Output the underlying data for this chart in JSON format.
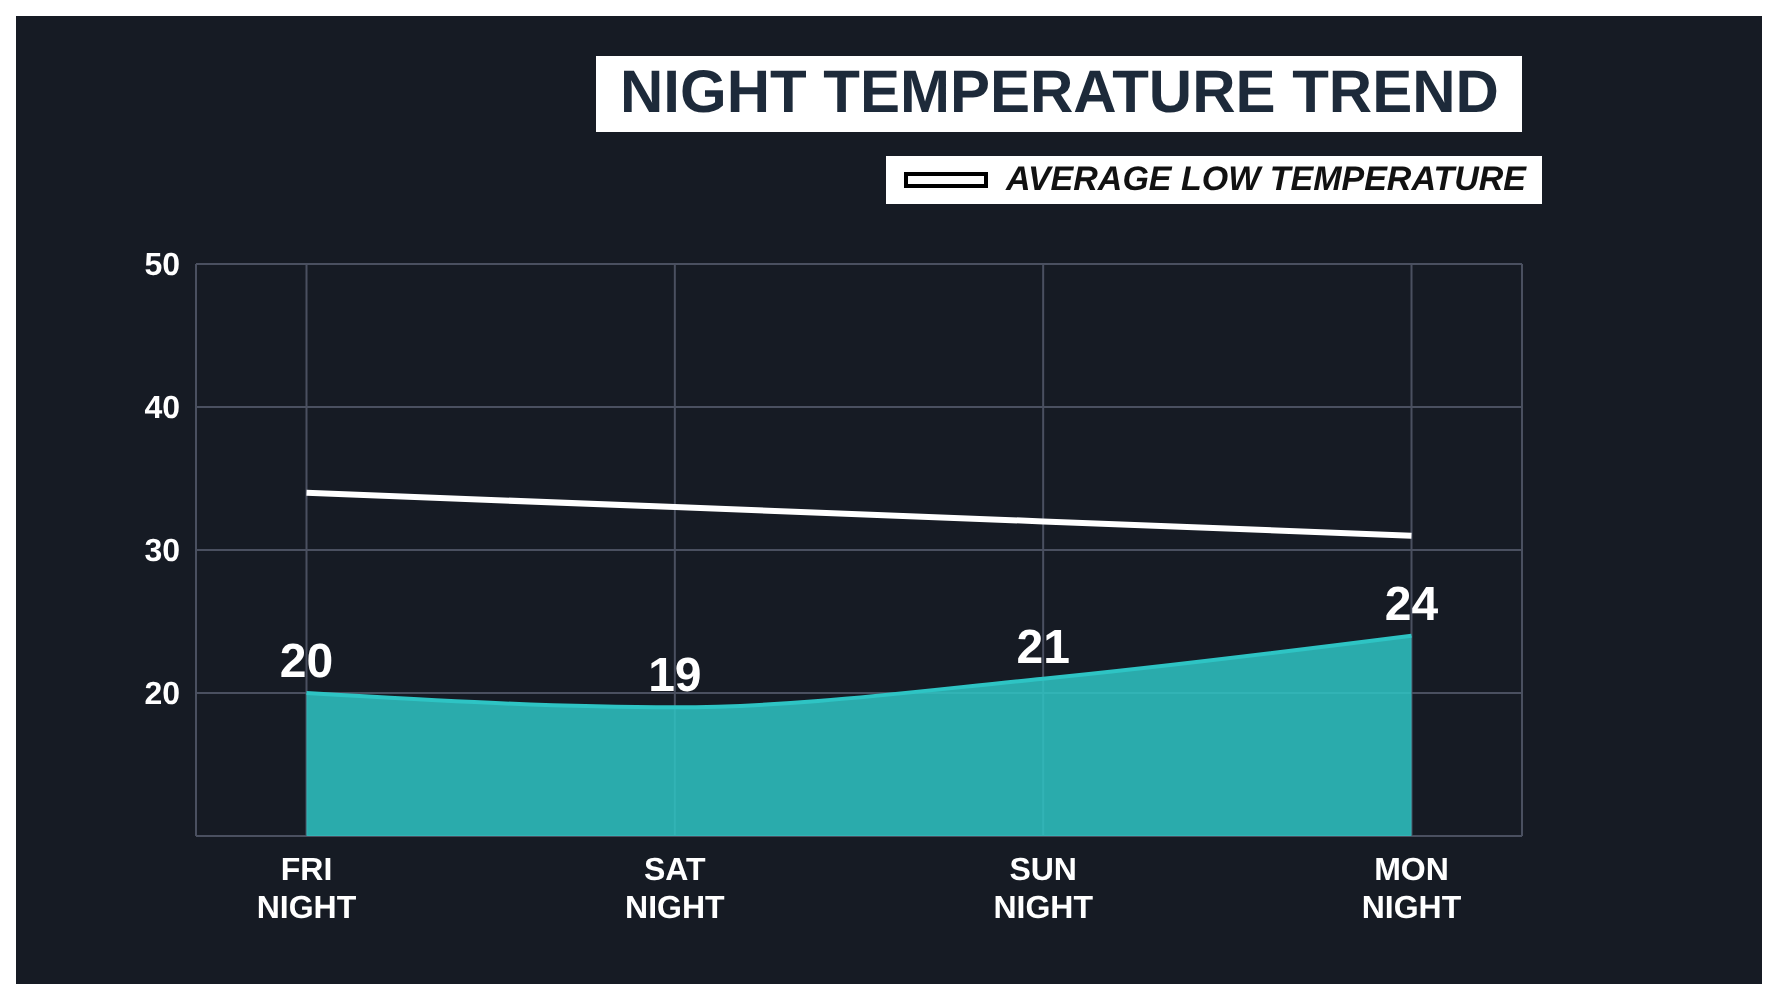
{
  "chart_data": {
    "type": "area",
    "title": "NIGHT TEMPERATURE TREND",
    "categories": [
      "FRI NIGHT",
      "SAT NIGHT",
      "SUN NIGHT",
      "MON NIGHT"
    ],
    "series": [
      {
        "color": "#2ec4c4",
        "values": [
          20,
          19,
          21,
          24
        ],
        "value_labels": [
          "20",
          "19",
          "21",
          "24"
        ]
      },
      {
        "type": "line",
        "name": "AVERAGE LOW TEMPERATURE",
        "color": "#ffffff",
        "values": [
          34,
          33,
          32,
          31
        ]
      }
    ],
    "ylim": [
      10,
      50
    ],
    "yticks": [
      20,
      30,
      40,
      50
    ],
    "grid": true,
    "legend": "top right"
  }
}
